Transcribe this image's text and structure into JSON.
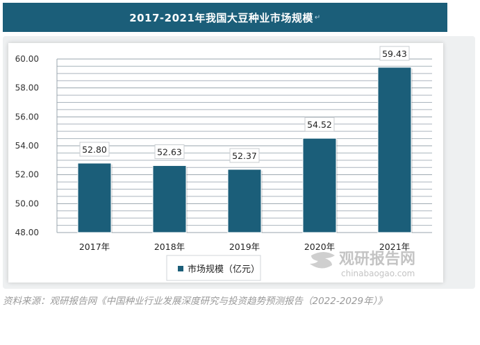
{
  "header": {
    "title": "2017-2021年我国大豆种业市场规模",
    "return_mark": "↵"
  },
  "legend": {
    "label": "市场规模（亿元）"
  },
  "watermark": {
    "brand_cn": "观研报告网",
    "domain": "chinabaogao.com"
  },
  "source_text": "资料来源：观研报告网《中国种业行业发展深度研究与投资趋势预测报告（2022-2029年）》",
  "colors": {
    "bar": "#1b5e79",
    "banner": "#1b5e79",
    "grid": "#aab4bd",
    "watermark": "#c7c7c7"
  },
  "chart_data": {
    "type": "bar",
    "title": "2017-2021年我国大豆种业市场规模",
    "categories": [
      "2017年",
      "2018年",
      "2019年",
      "2020年",
      "2021年"
    ],
    "series": [
      {
        "name": "市场规模（亿元）",
        "values": [
          52.8,
          52.63,
          52.37,
          54.52,
          59.43
        ]
      }
    ],
    "data_labels": [
      "52.80",
      "52.63",
      "52.37",
      "54.52",
      "59.43"
    ],
    "y_ticks": [
      "48.00",
      "50.00",
      "52.00",
      "54.00",
      "56.00",
      "58.00",
      "60.00"
    ],
    "ylim": [
      48,
      60
    ],
    "grid": true,
    "legend_position": "bottom"
  }
}
